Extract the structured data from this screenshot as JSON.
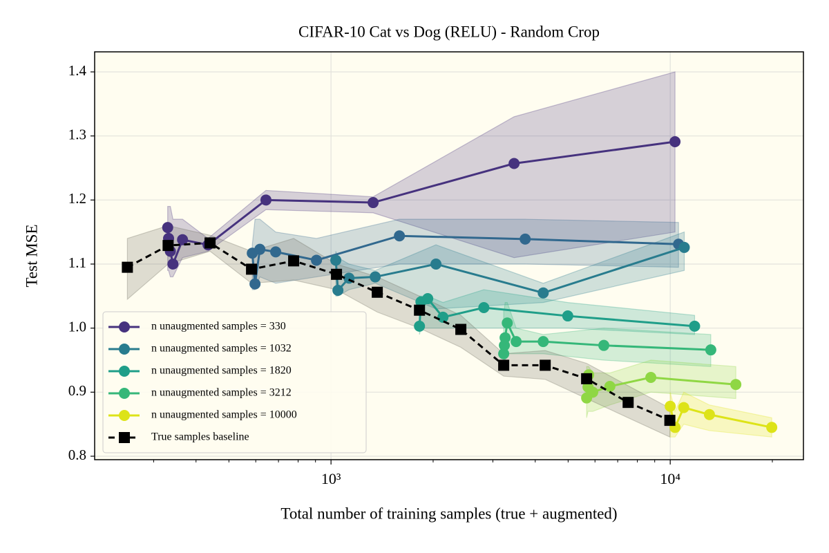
{
  "chart_data": {
    "type": "line",
    "title": "CIFAR-10 Cat vs Dog (RELU) - Random Crop",
    "xlabel": "Total number of training samples (true + augmented)",
    "ylabel": "Test MSE",
    "xscale": "log",
    "xlim": [
      201,
      24700
    ],
    "ylim": [
      0.7946,
      1.4313
    ],
    "xticks": [
      {
        "value": 1000,
        "label": "10³"
      },
      {
        "value": 10000,
        "label": "10⁴"
      }
    ],
    "xminorticks": [
      300,
      400,
      500,
      600,
      700,
      800,
      900,
      2000,
      3000,
      4000,
      5000,
      6000,
      7000,
      8000,
      9000,
      20000
    ],
    "yticks": [
      0.8,
      0.9,
      {
        "value": 1,
        "label": "1.0"
      },
      1.1,
      1.2,
      1.3,
      1.4
    ],
    "grid": true,
    "legend": "lower left",
    "series": [
      {
        "name": "n unaugmented samples = 330",
        "color": "#46327e",
        "marker": "o",
        "x": [
          330,
          332,
          336,
          342,
          365,
          434,
          643,
          1331,
          3465,
          10330
        ],
        "values": [
          1.157,
          1.14,
          1.12,
          1.1,
          1.138,
          1.13,
          1.2,
          1.196,
          1.257,
          1.291
        ],
        "lower": [
          1.09,
          1.09,
          1.08,
          1.08,
          1.11,
          1.12,
          1.185,
          1.18,
          1.11,
          1.15
        ],
        "upper": [
          1.19,
          1.19,
          1.19,
          1.17,
          1.17,
          1.14,
          1.215,
          1.205,
          1.33,
          1.4
        ]
      },
      {
        "color": "#31688e",
        "marker": "o",
        "x": [
          586,
          597,
          617,
          687,
          906,
          1591,
          3736,
          10580
        ],
        "values": [
          1.117,
          1.069,
          1.123,
          1.119,
          1.106,
          1.144,
          1.139,
          1.131
        ],
        "lower": [
          1.06,
          1.06,
          1.08,
          1.07,
          1.08,
          1.1,
          1.1,
          1.095
        ],
        "upper": [
          1.13,
          1.17,
          1.17,
          1.15,
          1.14,
          1.17,
          1.17,
          1.165
        ]
      },
      {
        "name": "n unaugmented samples = 1032",
        "color": "#287c8e",
        "marker": "o",
        "x": [
          1033,
          1048,
          1130,
          1350,
          2039,
          4223,
          11000
        ],
        "values": [
          1.106,
          1.059,
          1.078,
          1.08,
          1.1,
          1.055,
          1.126
        ],
        "lower": [
          1.05,
          1.05,
          1.06,
          1.07,
          1.03,
          1.04,
          1.09
        ],
        "upper": [
          1.12,
          1.11,
          1.1,
          1.09,
          1.13,
          1.07,
          1.15
        ]
      },
      {
        "name": "n unaugmented samples = 1820",
        "color": "#1f9e89",
        "marker": "o",
        "x": [
          1823,
          1841,
          1928,
          2138,
          2822,
          4988,
          11800
        ],
        "values": [
          1.003,
          1.041,
          1.046,
          1.017,
          1.032,
          1.019,
          1.003
        ],
        "lower": [
          0.99,
          1.0,
          1.0,
          1.0,
          1.0,
          1.0,
          0.99
        ],
        "upper": [
          1.05,
          1.05,
          1.05,
          1.04,
          1.06,
          1.04,
          1.02
        ]
      },
      {
        "name": "n unaugmented samples = 3212",
        "color": "#35b779",
        "marker": "o",
        "x": [
          3229,
          3244,
          3260,
          3308,
          3514,
          4223,
          6371,
          13170
        ],
        "values": [
          0.96,
          0.973,
          0.985,
          1.008,
          0.979,
          0.979,
          0.973,
          0.966
        ],
        "lower": [
          0.94,
          0.94,
          0.95,
          0.96,
          0.96,
          0.96,
          0.95,
          0.94
        ],
        "upper": [
          1.03,
          1.03,
          1.04,
          1.04,
          1.0,
          0.99,
          1.0,
          0.99
        ]
      },
      {
        "color": "#8fd744",
        "marker": "o",
        "x": [
          5669,
          5723,
          5748,
          5909,
          6638,
          8766,
          15610
        ],
        "values": [
          0.891,
          0.908,
          0.927,
          0.9,
          0.909,
          0.923,
          0.912
        ],
        "lower": [
          0.86,
          0.87,
          0.87,
          0.87,
          0.88,
          0.9,
          0.89
        ],
        "upper": [
          0.94,
          0.94,
          0.94,
          0.93,
          0.93,
          0.95,
          0.94
        ]
      },
      {
        "name": "n unaugmented samples = 10000",
        "color": "#dde318",
        "marker": "o",
        "x": [
          10000,
          10330,
          10960,
          13050,
          19920
        ],
        "values": [
          0.878,
          0.845,
          0.876,
          0.865,
          0.845
        ],
        "lower": [
          0.83,
          0.83,
          0.85,
          0.84,
          0.83
        ],
        "upper": [
          0.9,
          0.87,
          0.9,
          0.88,
          0.86
        ]
      },
      {
        "name": "True samples baseline",
        "color": "#000000",
        "marker": "s",
        "linestyle": "dashed",
        "x": [
          251,
          331,
          440,
          583,
          776,
          1038,
          1369,
          1823,
          2414,
          3229,
          4280,
          5669,
          7515,
          9974
        ],
        "values": [
          1.095,
          1.129,
          1.133,
          1.092,
          1.105,
          1.084,
          1.056,
          1.028,
          0.998,
          0.942,
          0.942,
          0.921,
          0.884,
          0.856
        ],
        "lower": [
          1.045,
          1.1,
          1.12,
          1.07,
          1.075,
          1.06,
          1.025,
          1.0,
          0.97,
          0.925,
          0.92,
          0.89,
          0.86,
          0.83
        ],
        "upper": [
          1.14,
          1.16,
          1.145,
          1.12,
          1.14,
          1.1,
          1.08,
          1.05,
          1.02,
          0.96,
          0.965,
          0.945,
          0.91,
          0.875
        ]
      }
    ]
  }
}
